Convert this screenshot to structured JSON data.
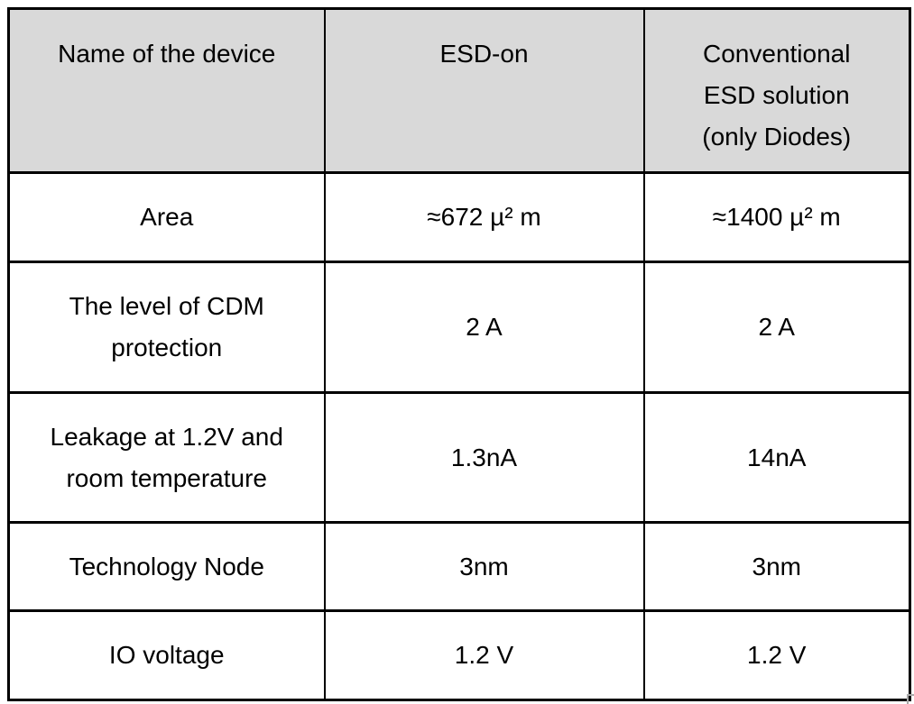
{
  "colors": {
    "header_bg": "#d9d9d9",
    "border": "#000000",
    "text": "#000000"
  },
  "table": {
    "columns": [
      "Name of the device",
      "ESD-on",
      "Conventional\nESD solution\n(only Diodes)"
    ],
    "rows": [
      {
        "label": "Area",
        "esd_on": "≈672 µ² m",
        "conventional": "≈1400 µ² m"
      },
      {
        "label": "The level of CDM\nprotection",
        "esd_on": "2 A",
        "conventional": "2 A"
      },
      {
        "label": "Leakage at 1.2V and\nroom temperature",
        "esd_on": "1.3nA",
        "conventional": "14nA"
      },
      {
        "label": "Technology Node",
        "esd_on": "3nm",
        "conventional": "3nm"
      },
      {
        "label": "IO voltage",
        "esd_on": "1.2 V",
        "conventional": "1.2 V"
      }
    ]
  }
}
